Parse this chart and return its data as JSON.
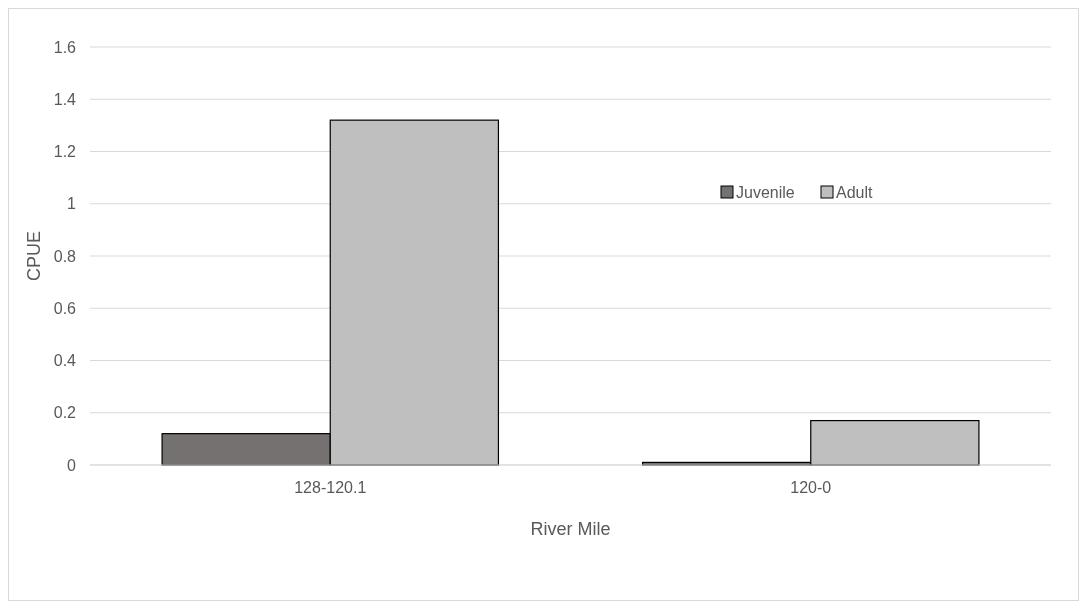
{
  "chart_data": {
    "type": "bar",
    "xlabel": "River Mile",
    "ylabel": "CPUE",
    "categories": [
      "128-120.1",
      "120-0"
    ],
    "series": [
      {
        "name": "Juvenile",
        "color": "#767171",
        "values": [
          0.12,
          0.01
        ]
      },
      {
        "name": "Adult",
        "color": "#bfbfbf",
        "values": [
          1.32,
          0.17
        ]
      }
    ],
    "ylim": [
      0,
      1.6
    ],
    "yticks": [
      0,
      0.2,
      0.4,
      0.6,
      0.8,
      {
        "value": 1,
        "label": "1"
      },
      1.2,
      1.4,
      1.6
    ],
    "grid": "y",
    "legend": "right"
  }
}
